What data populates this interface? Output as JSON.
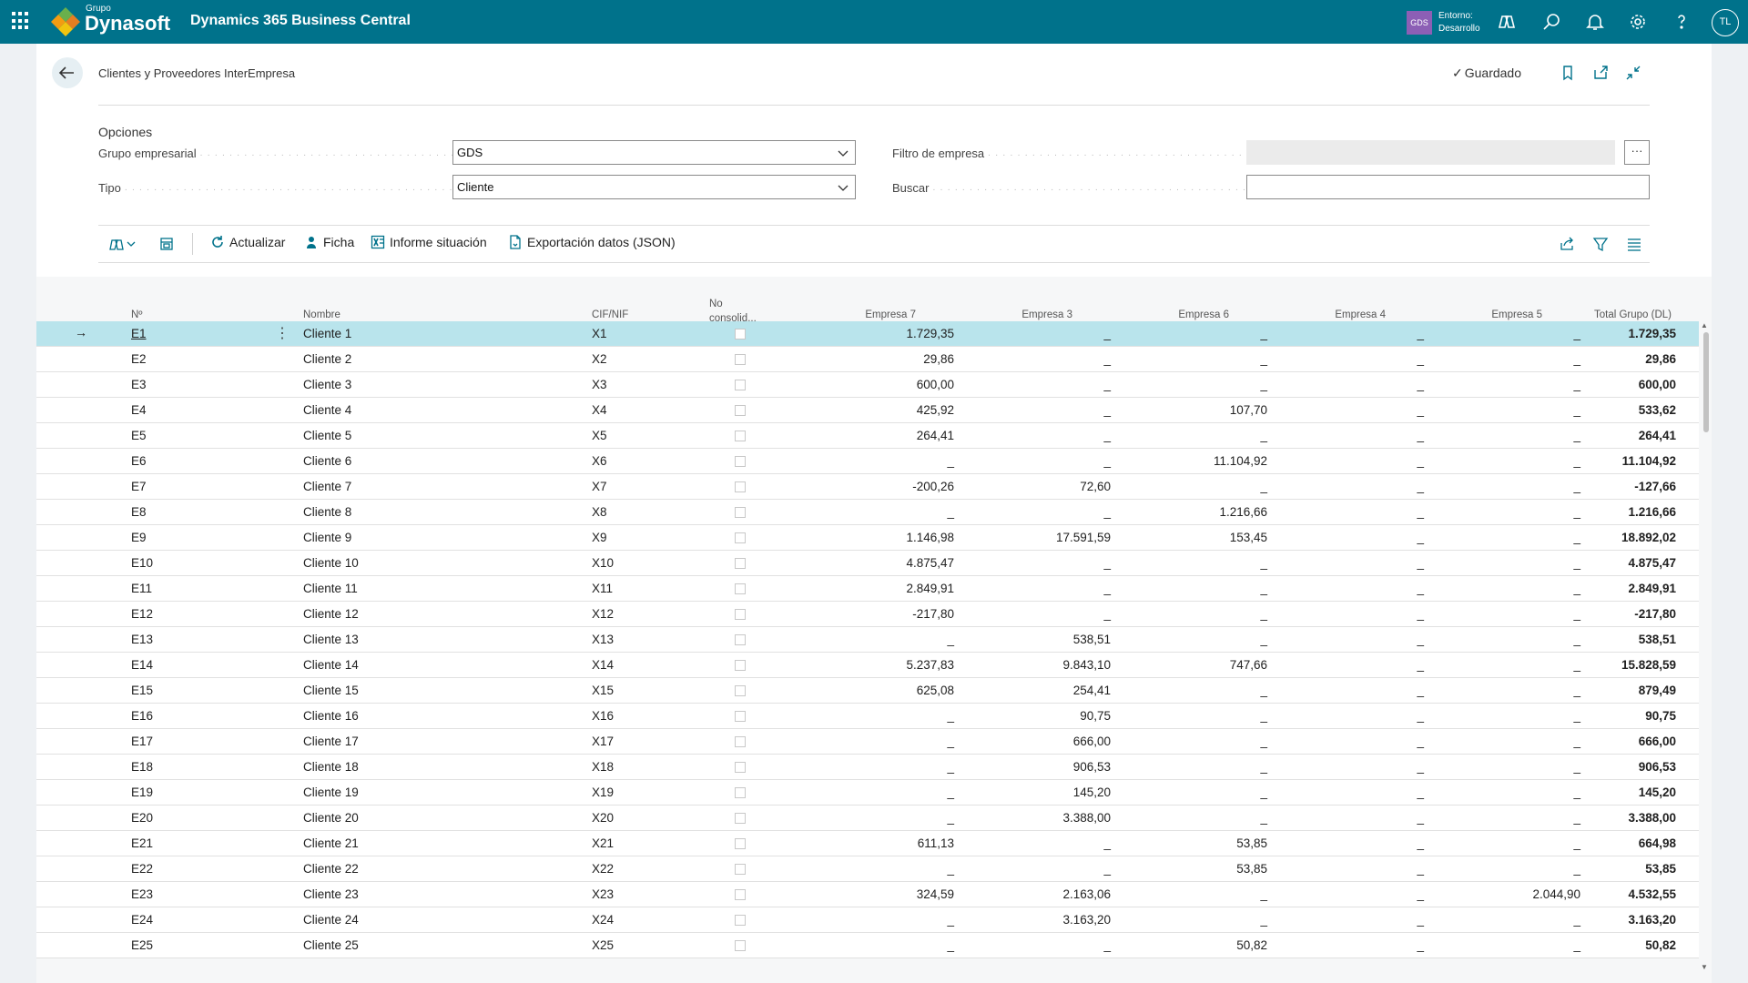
{
  "topbar": {
    "logo_small": "Grupo",
    "logo_big": "Dynasoft",
    "app_title": "Dynamics 365 Business Central",
    "env_badge": "GDS",
    "env_line1": "Entorno:",
    "env_line2": "Desarrollo",
    "avatar": "TL"
  },
  "page": {
    "title": "Clientes y Proveedores InterEmpresa",
    "saved_label": "Guardado"
  },
  "options": {
    "section_title": "Opciones",
    "grupo_label": "Grupo empresarial",
    "grupo_value": "GDS",
    "tipo_label": "Tipo",
    "tipo_value": "Cliente",
    "filtro_label": "Filtro de empresa",
    "filtro_value": "",
    "filtro_more": "···",
    "buscar_label": "Buscar",
    "buscar_value": ""
  },
  "actions": {
    "actualizar": "Actualizar",
    "ficha": "Ficha",
    "informe": "Informe situación",
    "exportacion": "Exportación datos (JSON)"
  },
  "grid": {
    "headers": {
      "no": "Nº",
      "nombre": "Nombre",
      "cif": "CIF/NIF",
      "noconsol_1": "No",
      "noconsol_2": "consolid...",
      "emp7": "Empresa 7",
      "emp3": "Empresa 3",
      "emp6": "Empresa 6",
      "emp4": "Empresa 4",
      "emp5": "Empresa 5",
      "total": "Total Grupo (DL)"
    },
    "rows": [
      {
        "no": "E1",
        "nombre": "Cliente 1",
        "cif": "X1",
        "emp7": "1.729,35",
        "emp3": "_",
        "emp6": "_",
        "emp4": "_",
        "emp5": "_",
        "total": "1.729,35"
      },
      {
        "no": "E2",
        "nombre": "Cliente 2",
        "cif": "X2",
        "emp7": "29,86",
        "emp3": "_",
        "emp6": "_",
        "emp4": "_",
        "emp5": "_",
        "total": "29,86"
      },
      {
        "no": "E3",
        "nombre": "Cliente 3",
        "cif": "X3",
        "emp7": "600,00",
        "emp3": "_",
        "emp6": "_",
        "emp4": "_",
        "emp5": "_",
        "total": "600,00"
      },
      {
        "no": "E4",
        "nombre": "Cliente 4",
        "cif": "X4",
        "emp7": "425,92",
        "emp3": "_",
        "emp6": "107,70",
        "emp4": "_",
        "emp5": "_",
        "total": "533,62"
      },
      {
        "no": "E5",
        "nombre": "Cliente 5",
        "cif": "X5",
        "emp7": "264,41",
        "emp3": "_",
        "emp6": "_",
        "emp4": "_",
        "emp5": "_",
        "total": "264,41"
      },
      {
        "no": "E6",
        "nombre": "Cliente 6",
        "cif": "X6",
        "emp7": "_",
        "emp3": "_",
        "emp6": "11.104,92",
        "emp4": "_",
        "emp5": "_",
        "total": "11.104,92"
      },
      {
        "no": "E7",
        "nombre": "Cliente 7",
        "cif": "X7",
        "emp7": "-200,26",
        "emp3": "72,60",
        "emp6": "_",
        "emp4": "_",
        "emp5": "_",
        "total": "-127,66"
      },
      {
        "no": "E8",
        "nombre": "Cliente 8",
        "cif": "X8",
        "emp7": "_",
        "emp3": "_",
        "emp6": "1.216,66",
        "emp4": "_",
        "emp5": "_",
        "total": "1.216,66"
      },
      {
        "no": "E9",
        "nombre": "Cliente 9",
        "cif": "X9",
        "emp7": "1.146,98",
        "emp3": "17.591,59",
        "emp6": "153,45",
        "emp4": "_",
        "emp5": "_",
        "total": "18.892,02"
      },
      {
        "no": "E10",
        "nombre": "Cliente 10",
        "cif": "X10",
        "emp7": "4.875,47",
        "emp3": "_",
        "emp6": "_",
        "emp4": "_",
        "emp5": "_",
        "total": "4.875,47"
      },
      {
        "no": "E11",
        "nombre": "Cliente 11",
        "cif": "X11",
        "emp7": "2.849,91",
        "emp3": "_",
        "emp6": "_",
        "emp4": "_",
        "emp5": "_",
        "total": "2.849,91"
      },
      {
        "no": "E12",
        "nombre": "Cliente 12",
        "cif": "X12",
        "emp7": "-217,80",
        "emp3": "_",
        "emp6": "_",
        "emp4": "_",
        "emp5": "_",
        "total": "-217,80"
      },
      {
        "no": "E13",
        "nombre": "Cliente 13",
        "cif": "X13",
        "emp7": "_",
        "emp3": "538,51",
        "emp6": "_",
        "emp4": "_",
        "emp5": "_",
        "total": "538,51"
      },
      {
        "no": "E14",
        "nombre": "Cliente 14",
        "cif": "X14",
        "emp7": "5.237,83",
        "emp3": "9.843,10",
        "emp6": "747,66",
        "emp4": "_",
        "emp5": "_",
        "total": "15.828,59"
      },
      {
        "no": "E15",
        "nombre": "Cliente 15",
        "cif": "X15",
        "emp7": "625,08",
        "emp3": "254,41",
        "emp6": "_",
        "emp4": "_",
        "emp5": "_",
        "total": "879,49"
      },
      {
        "no": "E16",
        "nombre": "Cliente 16",
        "cif": "X16",
        "emp7": "_",
        "emp3": "90,75",
        "emp6": "_",
        "emp4": "_",
        "emp5": "_",
        "total": "90,75"
      },
      {
        "no": "E17",
        "nombre": "Cliente 17",
        "cif": "X17",
        "emp7": "_",
        "emp3": "666,00",
        "emp6": "_",
        "emp4": "_",
        "emp5": "_",
        "total": "666,00"
      },
      {
        "no": "E18",
        "nombre": "Cliente 18",
        "cif": "X18",
        "emp7": "_",
        "emp3": "906,53",
        "emp6": "_",
        "emp4": "_",
        "emp5": "_",
        "total": "906,53"
      },
      {
        "no": "E19",
        "nombre": "Cliente 19",
        "cif": "X19",
        "emp7": "_",
        "emp3": "145,20",
        "emp6": "_",
        "emp4": "_",
        "emp5": "_",
        "total": "145,20"
      },
      {
        "no": "E20",
        "nombre": "Cliente 20",
        "cif": "X20",
        "emp7": "_",
        "emp3": "3.388,00",
        "emp6": "_",
        "emp4": "_",
        "emp5": "_",
        "total": "3.388,00"
      },
      {
        "no": "E21",
        "nombre": "Cliente 21",
        "cif": "X21",
        "emp7": "611,13",
        "emp3": "_",
        "emp6": "53,85",
        "emp4": "_",
        "emp5": "_",
        "total": "664,98"
      },
      {
        "no": "E22",
        "nombre": "Cliente 22",
        "cif": "X22",
        "emp7": "_",
        "emp3": "_",
        "emp6": "53,85",
        "emp4": "_",
        "emp5": "_",
        "total": "53,85"
      },
      {
        "no": "E23",
        "nombre": "Cliente 23",
        "cif": "X23",
        "emp7": "324,59",
        "emp3": "2.163,06",
        "emp6": "_",
        "emp4": "_",
        "emp5": "2.044,90",
        "total": "4.532,55"
      },
      {
        "no": "E24",
        "nombre": "Cliente 24",
        "cif": "X24",
        "emp7": "_",
        "emp3": "3.163,20",
        "emp6": "_",
        "emp4": "_",
        "emp5": "_",
        "total": "3.163,20"
      },
      {
        "no": "E25",
        "nombre": "Cliente 25",
        "cif": "X25",
        "emp7": "_",
        "emp3": "_",
        "emp6": "50,82",
        "emp4": "_",
        "emp5": "_",
        "total": "50,82"
      }
    ]
  },
  "colors": {
    "topbar": "#00728b",
    "selected_row": "#b9e4ec",
    "env_badge": "#8c5fb5"
  }
}
